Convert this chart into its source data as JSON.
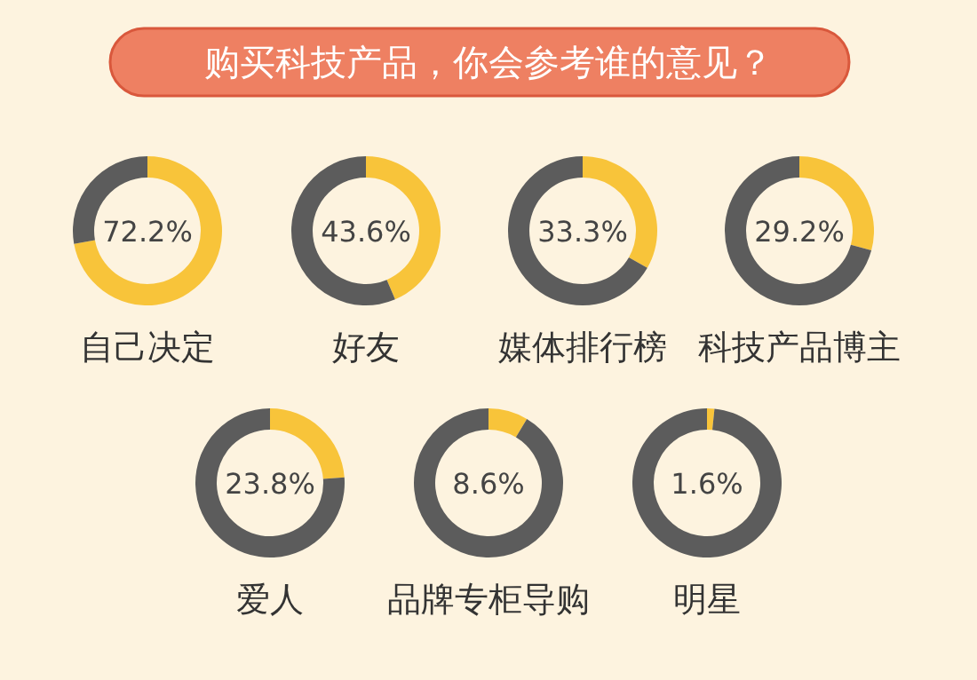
{
  "chart_data": [
    {
      "type": "other",
      "title": "购买科技产品，你会参考谁的意见？"
    },
    {
      "type": "donut",
      "title": "自己决定",
      "categories": [
        null,
        null
      ],
      "values": [
        72.2,
        27.8
      ],
      "colors": [
        "#f8c43a",
        "#5c5c5c"
      ],
      "annotations": [
        "72.2%"
      ]
    },
    {
      "type": "donut",
      "title": "好友",
      "categories": [
        null,
        null
      ],
      "values": [
        43.6,
        56.4
      ],
      "colors": [
        "#f8c43a",
        "#5c5c5c"
      ],
      "annotations": [
        "43.6%"
      ]
    },
    {
      "type": "donut",
      "title": "媒体排行榜",
      "categories": [
        null,
        null
      ],
      "values": [
        33.3,
        66.7
      ],
      "colors": [
        "#f8c43a",
        "#5c5c5c"
      ],
      "annotations": [
        "33.3%"
      ]
    },
    {
      "type": "donut",
      "title": "科技产品博主",
      "categories": [
        null,
        null
      ],
      "values": [
        29.2,
        70.8
      ],
      "colors": [
        "#f8c43a",
        "#5c5c5c"
      ],
      "annotations": [
        "29.2%"
      ]
    },
    {
      "type": "donut",
      "title": "爱人",
      "categories": [
        null,
        null
      ],
      "values": [
        23.8,
        76.2
      ],
      "colors": [
        "#f8c43a",
        "#5c5c5c"
      ],
      "annotations": [
        "23.8%"
      ]
    },
    {
      "type": "donut",
      "title": "品牌专柜导购",
      "categories": [
        null,
        null
      ],
      "values": [
        8.6,
        91.4
      ],
      "colors": [
        "#f8c43a",
        "#5c5c5c"
      ],
      "annotations": [
        "8.6%"
      ]
    },
    {
      "type": "donut",
      "title": "明星",
      "categories": [
        null,
        null
      ],
      "values": [
        1.6,
        98.4
      ],
      "colors": [
        "#f8c43a",
        "#5c5c5c"
      ],
      "annotations": [
        "1.6%"
      ]
    }
  ]
}
